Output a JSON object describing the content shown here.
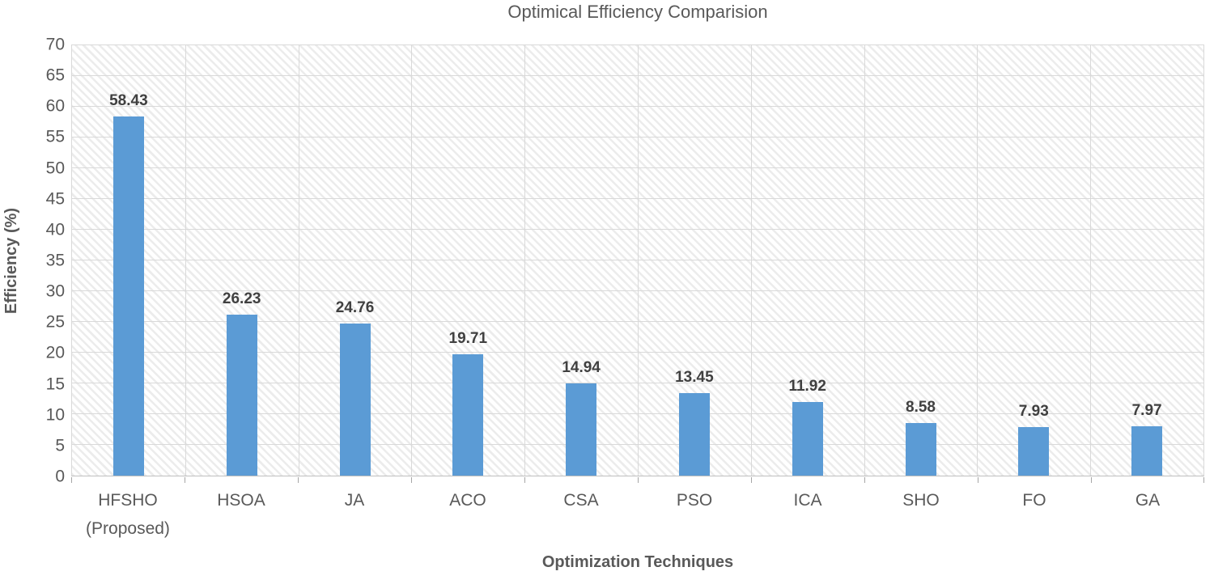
{
  "chart_data": {
    "type": "bar",
    "title": "Optimical Efficiency Comparision",
    "xlabel": "Optimization Techniques",
    "ylabel": "Efficiency (%)",
    "categories": [
      "HFSHO (Proposed)",
      "HSOA",
      "JA",
      "ACO",
      "CSA",
      "PSO",
      "ICA",
      "SHO",
      "FO",
      "GA"
    ],
    "tick_display_labels": [
      "HFSHO\n(Proposed)",
      "HSOA",
      "JA",
      "ACO",
      "CSA",
      "PSO",
      "ICA",
      "SHO",
      "FO",
      "GA"
    ],
    "values": [
      58.43,
      26.23,
      24.76,
      19.71,
      14.94,
      13.45,
      11.92,
      8.58,
      7.93,
      7.97
    ],
    "data_labels": [
      "58.43",
      "26.23",
      "24.76",
      "19.71",
      "14.94",
      "13.45",
      "11.92",
      "8.58",
      "7.93",
      "7.97"
    ],
    "ylim": [
      0,
      70
    ],
    "ytick_step": 5,
    "bar_color": "#5b9bd5",
    "grid": "horizontal and vertical gridlines on",
    "legend_position": "none",
    "plot_background": "diagonal hatch"
  }
}
